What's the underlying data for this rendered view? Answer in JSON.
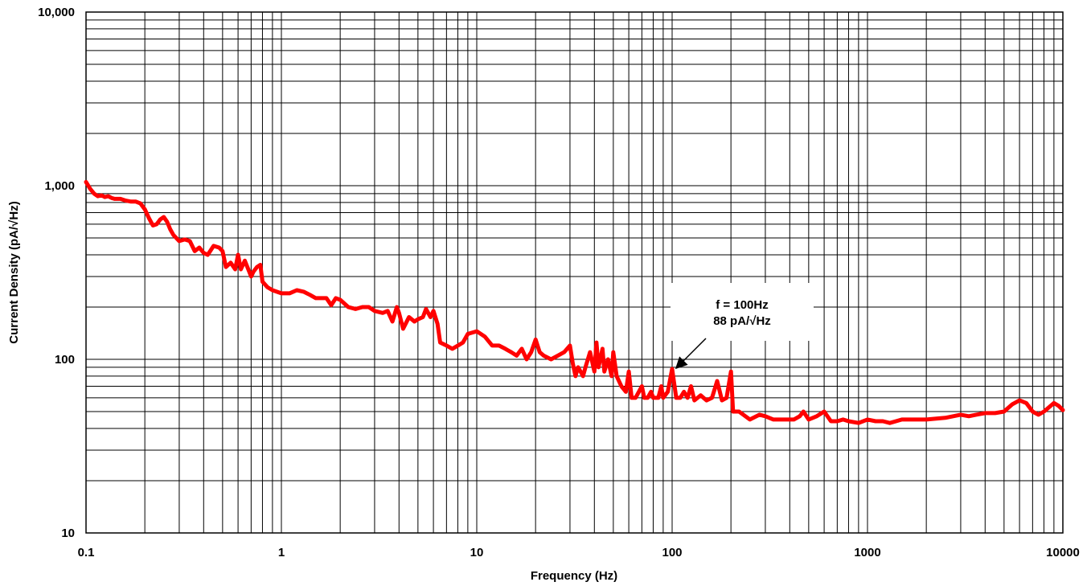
{
  "chart_data": {
    "type": "line",
    "title": "",
    "xlabel": "Frequency (Hz)",
    "ylabel": "Current Density (pA/√Hz)",
    "xscale": "log",
    "yscale": "log",
    "xlim": [
      0.1,
      10000
    ],
    "ylim": [
      10,
      10000
    ],
    "grid": true,
    "legend": "none",
    "x_tick_labels": [
      "0.1",
      "1",
      "10",
      "100",
      "1000",
      "10000"
    ],
    "y_tick_labels": [
      "10",
      "100",
      "1,000",
      "10,000"
    ],
    "series": [
      {
        "color": "#ff0000",
        "points": [
          [
            0.1,
            1050
          ],
          [
            0.105,
            960
          ],
          [
            0.11,
            900
          ],
          [
            0.115,
            870
          ],
          [
            0.12,
            880
          ],
          [
            0.125,
            860
          ],
          [
            0.13,
            870
          ],
          [
            0.135,
            850
          ],
          [
            0.14,
            840
          ],
          [
            0.15,
            840
          ],
          [
            0.16,
            820
          ],
          [
            0.17,
            810
          ],
          [
            0.18,
            810
          ],
          [
            0.19,
            790
          ],
          [
            0.2,
            730
          ],
          [
            0.21,
            650
          ],
          [
            0.22,
            590
          ],
          [
            0.23,
            600
          ],
          [
            0.24,
            640
          ],
          [
            0.25,
            660
          ],
          [
            0.26,
            620
          ],
          [
            0.27,
            560
          ],
          [
            0.28,
            520
          ],
          [
            0.3,
            480
          ],
          [
            0.32,
            490
          ],
          [
            0.34,
            480
          ],
          [
            0.36,
            420
          ],
          [
            0.38,
            440
          ],
          [
            0.4,
            410
          ],
          [
            0.42,
            400
          ],
          [
            0.45,
            450
          ],
          [
            0.48,
            440
          ],
          [
            0.5,
            420
          ],
          [
            0.52,
            340
          ],
          [
            0.55,
            360
          ],
          [
            0.58,
            330
          ],
          [
            0.6,
            400
          ],
          [
            0.62,
            330
          ],
          [
            0.65,
            370
          ],
          [
            0.7,
            300
          ],
          [
            0.72,
            320
          ],
          [
            0.75,
            340
          ],
          [
            0.78,
            350
          ],
          [
            0.8,
            280
          ],
          [
            0.85,
            260
          ],
          [
            0.9,
            250
          ],
          [
            1.0,
            240
          ],
          [
            1.1,
            240
          ],
          [
            1.2,
            250
          ],
          [
            1.3,
            245
          ],
          [
            1.4,
            235
          ],
          [
            1.5,
            225
          ],
          [
            1.7,
            225
          ],
          [
            1.8,
            205
          ],
          [
            1.9,
            225
          ],
          [
            2.0,
            220
          ],
          [
            2.2,
            200
          ],
          [
            2.4,
            195
          ],
          [
            2.6,
            200
          ],
          [
            2.8,
            200
          ],
          [
            3.0,
            190
          ],
          [
            3.3,
            185
          ],
          [
            3.5,
            190
          ],
          [
            3.7,
            165
          ],
          [
            3.9,
            200
          ],
          [
            4.0,
            185
          ],
          [
            4.2,
            150
          ],
          [
            4.5,
            175
          ],
          [
            4.8,
            165
          ],
          [
            5.0,
            170
          ],
          [
            5.3,
            175
          ],
          [
            5.5,
            195
          ],
          [
            5.8,
            175
          ],
          [
            6.0,
            190
          ],
          [
            6.3,
            160
          ],
          [
            6.5,
            125
          ],
          [
            7.0,
            120
          ],
          [
            7.5,
            115
          ],
          [
            8.0,
            120
          ],
          [
            8.5,
            125
          ],
          [
            9.0,
            140
          ],
          [
            10.0,
            145
          ],
          [
            11.0,
            135
          ],
          [
            12.0,
            120
          ],
          [
            13.0,
            120
          ],
          [
            14.0,
            115
          ],
          [
            15.0,
            110
          ],
          [
            16.0,
            105
          ],
          [
            17.0,
            115
          ],
          [
            18.0,
            100
          ],
          [
            19.0,
            110
          ],
          [
            20.0,
            130
          ],
          [
            21.0,
            110
          ],
          [
            22.0,
            105
          ],
          [
            24.0,
            100
          ],
          [
            26.0,
            105
          ],
          [
            28.0,
            110
          ],
          [
            30.0,
            120
          ],
          [
            31.0,
            95
          ],
          [
            32.0,
            80
          ],
          [
            33.0,
            90
          ],
          [
            34.0,
            85
          ],
          [
            35.0,
            80
          ],
          [
            36.0,
            90
          ],
          [
            38.0,
            110
          ],
          [
            40.0,
            85
          ],
          [
            41.0,
            125
          ],
          [
            42.0,
            90
          ],
          [
            44.0,
            115
          ],
          [
            45.0,
            85
          ],
          [
            47.0,
            100
          ],
          [
            49.0,
            80
          ],
          [
            50.0,
            110
          ],
          [
            52.0,
            80
          ],
          [
            55.0,
            70
          ],
          [
            58.0,
            65
          ],
          [
            60.0,
            85
          ],
          [
            62.0,
            60
          ],
          [
            65.0,
            60
          ],
          [
            70.0,
            70
          ],
          [
            72.0,
            60
          ],
          [
            75.0,
            60
          ],
          [
            78.0,
            65
          ],
          [
            80.0,
            60
          ],
          [
            85.0,
            60
          ],
          [
            88.0,
            70
          ],
          [
            90.0,
            60
          ],
          [
            95.0,
            65
          ],
          [
            100.0,
            88
          ],
          [
            105.0,
            60
          ],
          [
            110.0,
            60
          ],
          [
            115.0,
            65
          ],
          [
            120.0,
            60
          ],
          [
            125.0,
            70
          ],
          [
            130.0,
            58
          ],
          [
            140.0,
            62
          ],
          [
            150.0,
            58
          ],
          [
            160.0,
            60
          ],
          [
            170.0,
            75
          ],
          [
            180.0,
            58
          ],
          [
            190.0,
            60
          ],
          [
            200.0,
            85
          ],
          [
            205.0,
            50
          ],
          [
            220.0,
            50
          ],
          [
            250.0,
            45
          ],
          [
            280.0,
            48
          ],
          [
            300.0,
            47
          ],
          [
            330.0,
            45
          ],
          [
            380.0,
            45
          ],
          [
            420.0,
            45
          ],
          [
            450.0,
            47
          ],
          [
            470.0,
            50
          ],
          [
            500.0,
            45
          ],
          [
            550.0,
            47
          ],
          [
            600.0,
            50
          ],
          [
            650.0,
            44
          ],
          [
            700.0,
            44
          ],
          [
            750.0,
            45
          ],
          [
            800.0,
            44
          ],
          [
            900.0,
            43
          ],
          [
            1000.0,
            45
          ],
          [
            1100.0,
            44
          ],
          [
            1200.0,
            44
          ],
          [
            1300.0,
            43
          ],
          [
            1400.0,
            44
          ],
          [
            1500.0,
            45
          ],
          [
            1700.0,
            45
          ],
          [
            2000.0,
            45
          ],
          [
            2500.0,
            46
          ],
          [
            3000.0,
            48
          ],
          [
            3300.0,
            47
          ],
          [
            3600.0,
            48
          ],
          [
            4000.0,
            49
          ],
          [
            4500.0,
            49
          ],
          [
            5000.0,
            50
          ],
          [
            5500.0,
            55
          ],
          [
            6000.0,
            58
          ],
          [
            6500.0,
            56
          ],
          [
            7000.0,
            50
          ],
          [
            7500.0,
            48
          ],
          [
            8000.0,
            50
          ],
          [
            9000.0,
            56
          ],
          [
            9500.0,
            54
          ],
          [
            10000.0,
            51
          ]
        ]
      }
    ],
    "annotation": {
      "line1": "f = 100Hz",
      "line2": "88 pA/√Hz",
      "target": [
        100,
        88
      ]
    }
  }
}
